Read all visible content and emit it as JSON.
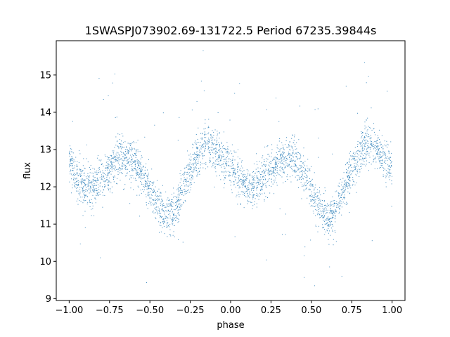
{
  "chart_data": {
    "type": "scatter",
    "title": "1SWASPJ073902.69-131722.5 Period 67235.39844s",
    "xlabel": "phase",
    "ylabel": "flux",
    "xlim": [
      -1.08,
      1.08
    ],
    "ylim": [
      8.95,
      15.92
    ],
    "xticks": [
      -1.0,
      -0.75,
      -0.5,
      -0.25,
      0.0,
      0.25,
      0.5,
      0.75,
      1.0
    ],
    "xtick_labels": [
      "−1.00",
      "−0.75",
      "−0.50",
      "−0.25",
      "0.00",
      "0.25",
      "0.50",
      "0.75",
      "1.00"
    ],
    "yticks": [
      9,
      10,
      11,
      12,
      13,
      14,
      15
    ],
    "ytick_labels": [
      "9",
      "10",
      "11",
      "12",
      "13",
      "14",
      "15"
    ],
    "grid": false,
    "marker_color": "#1f77b4",
    "series": [
      {
        "x": [
          -1.0,
          -0.95,
          -0.9,
          -0.85,
          -0.8,
          -0.75,
          -0.7,
          -0.65,
          -0.6,
          -0.55,
          -0.5,
          -0.45,
          -0.4,
          -0.35,
          -0.3,
          -0.25,
          -0.2,
          -0.15,
          -0.1,
          -0.05,
          0.0,
          0.05,
          0.1,
          0.15,
          0.2,
          0.25,
          0.3,
          0.35,
          0.4,
          0.45,
          0.5,
          0.55,
          0.6,
          0.65,
          0.7,
          0.75,
          0.8,
          0.85,
          0.9,
          0.95,
          1.0
        ],
        "y": [
          12.7,
          12.2,
          11.95,
          12.0,
          12.25,
          12.5,
          12.75,
          12.8,
          12.7,
          12.35,
          11.9,
          11.45,
          11.15,
          11.35,
          11.9,
          12.45,
          12.9,
          13.15,
          13.05,
          12.75,
          12.5,
          12.2,
          11.95,
          12.0,
          12.25,
          12.5,
          12.75,
          12.8,
          12.7,
          12.35,
          11.9,
          11.45,
          11.15,
          11.35,
          11.9,
          12.45,
          12.9,
          13.15,
          13.05,
          12.75,
          12.5
        ]
      }
    ]
  }
}
